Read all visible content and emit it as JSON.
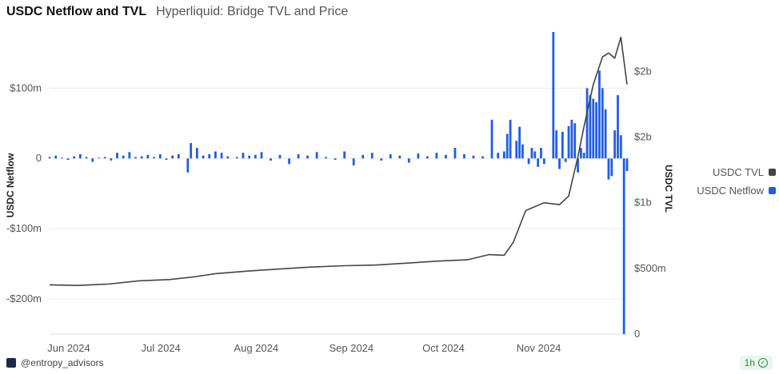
{
  "header": {
    "title": "USDC Netflow and TVL",
    "subtitle": "Hyperliquid: Bridge TVL and Price"
  },
  "footer": {
    "handle": "@entropy_advisors",
    "refresh": "1h",
    "logo_icon": "entropy-logo-icon",
    "status_icon": "check-circle-icon"
  },
  "colors": {
    "tvl": "#444444",
    "netflow": "#1f5ee8"
  },
  "chart_data": {
    "type": "bar+line",
    "x_labels": [
      "Jun 2024",
      "Jul 2024",
      "Aug 2024",
      "Sep 2024",
      "Oct 2024",
      "Nov 2024"
    ],
    "x_range": [
      "2024-06-01",
      "2024-12-06"
    ],
    "left_axis": {
      "title": "USDC Netflow",
      "ticks": [
        "$100m",
        "0",
        "-$100m",
        "-$200m"
      ],
      "tick_values": [
        100,
        0,
        -100,
        -200
      ],
      "ylim": [
        -250,
        180
      ],
      "unit": "$m"
    },
    "right_axis": {
      "title": "USDC TVL",
      "ticks": [
        "$2b",
        "$2b",
        "$1b",
        "$500m",
        "0"
      ],
      "tick_values": [
        2000,
        1500,
        1000,
        500,
        0
      ],
      "ylim": [
        0,
        2300
      ],
      "unit": "$m"
    },
    "legend": [
      {
        "name": "USDC TVL",
        "color": "#444444"
      },
      {
        "name": "USDC Netflow",
        "color": "#1f5ee8"
      }
    ],
    "legend_position": "right",
    "grid": true,
    "series": [
      {
        "name": "USDC TVL",
        "type": "line",
        "axis": "right",
        "points": [
          [
            "2024-06-01",
            375
          ],
          [
            "2024-06-10",
            370
          ],
          [
            "2024-06-20",
            380
          ],
          [
            "2024-06-30",
            405
          ],
          [
            "2024-07-10",
            415
          ],
          [
            "2024-07-18",
            435
          ],
          [
            "2024-07-25",
            460
          ],
          [
            "2024-08-05",
            480
          ],
          [
            "2024-08-15",
            495
          ],
          [
            "2024-08-25",
            510
          ],
          [
            "2024-09-05",
            520
          ],
          [
            "2024-09-15",
            525
          ],
          [
            "2024-09-25",
            540
          ],
          [
            "2024-10-05",
            555
          ],
          [
            "2024-10-15",
            565
          ],
          [
            "2024-10-22",
            605
          ],
          [
            "2024-10-27",
            600
          ],
          [
            "2024-10-30",
            700
          ],
          [
            "2024-11-03",
            940
          ],
          [
            "2024-11-09",
            1000
          ],
          [
            "2024-11-14",
            985
          ],
          [
            "2024-11-17",
            1050
          ],
          [
            "2024-11-20",
            1350
          ],
          [
            "2024-11-22",
            1580
          ],
          [
            "2024-11-25",
            1900
          ],
          [
            "2024-11-28",
            2110
          ],
          [
            "2024-11-30",
            2140
          ],
          [
            "2024-12-02",
            2100
          ],
          [
            "2024-12-04",
            2260
          ],
          [
            "2024-12-06",
            1900
          ]
        ]
      },
      {
        "name": "USDC Netflow",
        "type": "bar",
        "axis": "left",
        "points": [
          [
            "2024-06-01",
            2
          ],
          [
            "2024-06-03",
            4
          ],
          [
            "2024-06-05",
            1
          ],
          [
            "2024-06-07",
            -2
          ],
          [
            "2024-06-09",
            3
          ],
          [
            "2024-06-11",
            6
          ],
          [
            "2024-06-13",
            2
          ],
          [
            "2024-06-15",
            -5
          ],
          [
            "2024-06-17",
            1
          ],
          [
            "2024-06-19",
            2
          ],
          [
            "2024-06-21",
            -3
          ],
          [
            "2024-06-23",
            8
          ],
          [
            "2024-06-25",
            4
          ],
          [
            "2024-06-27",
            9
          ],
          [
            "2024-06-29",
            2
          ],
          [
            "2024-07-01",
            3
          ],
          [
            "2024-07-03",
            5
          ],
          [
            "2024-07-05",
            2
          ],
          [
            "2024-07-07",
            6
          ],
          [
            "2024-07-09",
            -2
          ],
          [
            "2024-07-11",
            4
          ],
          [
            "2024-07-13",
            6
          ],
          [
            "2024-07-16",
            -20
          ],
          [
            "2024-07-17",
            22
          ],
          [
            "2024-07-19",
            15
          ],
          [
            "2024-07-21",
            4
          ],
          [
            "2024-07-23",
            6
          ],
          [
            "2024-07-25",
            10
          ],
          [
            "2024-07-27",
            8
          ],
          [
            "2024-07-29",
            3
          ],
          [
            "2024-08-01",
            2
          ],
          [
            "2024-08-03",
            8
          ],
          [
            "2024-08-05",
            4
          ],
          [
            "2024-08-07",
            5
          ],
          [
            "2024-08-09",
            9
          ],
          [
            "2024-08-12",
            -3
          ],
          [
            "2024-08-15",
            5
          ],
          [
            "2024-08-18",
            -8
          ],
          [
            "2024-08-21",
            6
          ],
          [
            "2024-08-24",
            4
          ],
          [
            "2024-08-27",
            9
          ],
          [
            "2024-08-30",
            2
          ],
          [
            "2024-09-02",
            -2
          ],
          [
            "2024-09-05",
            10
          ],
          [
            "2024-09-08",
            -10
          ],
          [
            "2024-09-11",
            5
          ],
          [
            "2024-09-14",
            8
          ],
          [
            "2024-09-17",
            -3
          ],
          [
            "2024-09-20",
            6
          ],
          [
            "2024-09-23",
            4
          ],
          [
            "2024-09-26",
            -6
          ],
          [
            "2024-09-29",
            7
          ],
          [
            "2024-10-02",
            3
          ],
          [
            "2024-10-05",
            8
          ],
          [
            "2024-10-08",
            5
          ],
          [
            "2024-10-11",
            15
          ],
          [
            "2024-10-14",
            6
          ],
          [
            "2024-10-17",
            4
          ],
          [
            "2024-10-20",
            3
          ],
          [
            "2024-10-23",
            55
          ],
          [
            "2024-10-25",
            8
          ],
          [
            "2024-10-27",
            10
          ],
          [
            "2024-10-28",
            35
          ],
          [
            "2024-10-29",
            55
          ],
          [
            "2024-10-31",
            25
          ],
          [
            "2024-11-01",
            45
          ],
          [
            "2024-11-02",
            20
          ],
          [
            "2024-11-04",
            -8
          ],
          [
            "2024-11-05",
            15
          ],
          [
            "2024-11-06",
            10
          ],
          [
            "2024-11-07",
            -12
          ],
          [
            "2024-11-08",
            15
          ],
          [
            "2024-11-09",
            -8
          ],
          [
            "2024-11-12",
            180
          ],
          [
            "2024-11-13",
            40
          ],
          [
            "2024-11-14",
            -15
          ],
          [
            "2024-11-15",
            38
          ],
          [
            "2024-11-16",
            -5
          ],
          [
            "2024-11-17",
            46
          ],
          [
            "2024-11-18",
            55
          ],
          [
            "2024-11-19",
            50
          ],
          [
            "2024-11-20",
            -20
          ],
          [
            "2024-11-21",
            15
          ],
          [
            "2024-11-22",
            8
          ],
          [
            "2024-11-23",
            100
          ],
          [
            "2024-11-24",
            90
          ],
          [
            "2024-11-25",
            85
          ],
          [
            "2024-11-26",
            80
          ],
          [
            "2024-11-27",
            125
          ],
          [
            "2024-11-28",
            100
          ],
          [
            "2024-11-29",
            70
          ],
          [
            "2024-11-30",
            -30
          ],
          [
            "2024-12-01",
            -25
          ],
          [
            "2024-12-02",
            40
          ],
          [
            "2024-12-03",
            90
          ],
          [
            "2024-12-04",
            33
          ],
          [
            "2024-12-05",
            -250
          ],
          [
            "2024-12-06",
            -18
          ]
        ]
      }
    ]
  }
}
